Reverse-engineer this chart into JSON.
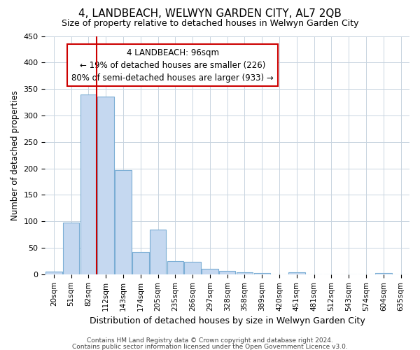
{
  "title": "4, LANDBEACH, WELWYN GARDEN CITY, AL7 2QB",
  "subtitle": "Size of property relative to detached houses in Welwyn Garden City",
  "xlabel": "Distribution of detached houses by size in Welwyn Garden City",
  "ylabel": "Number of detached properties",
  "bar_color": "#c5d8f0",
  "bar_edge_color": "#7aadd4",
  "background_color": "#ffffff",
  "grid_color": "#c8d4e0",
  "annotation_box_color": "#cc0000",
  "vline_color": "#cc0000",
  "vline_x_index": 2,
  "categories": [
    "20sqm",
    "51sqm",
    "82sqm",
    "112sqm",
    "143sqm",
    "174sqm",
    "205sqm",
    "235sqm",
    "266sqm",
    "297sqm",
    "328sqm",
    "358sqm",
    "389sqm",
    "420sqm",
    "451sqm",
    "481sqm",
    "512sqm",
    "543sqm",
    "574sqm",
    "604sqm",
    "635sqm"
  ],
  "values": [
    5,
    97,
    340,
    335,
    197,
    42,
    85,
    25,
    23,
    10,
    6,
    4,
    3,
    0,
    4,
    0,
    0,
    0,
    0,
    3,
    0
  ],
  "ylim": [
    0,
    450
  ],
  "yticks": [
    0,
    50,
    100,
    150,
    200,
    250,
    300,
    350,
    400,
    450
  ],
  "annotation_line1": "4 LANDBEACH: 96sqm",
  "annotation_line2": "← 19% of detached houses are smaller (226)",
  "annotation_line3": "80% of semi-detached houses are larger (933) →",
  "footnote1": "Contains HM Land Registry data © Crown copyright and database right 2024.",
  "footnote2": "Contains public sector information licensed under the Open Government Licence v3.0."
}
